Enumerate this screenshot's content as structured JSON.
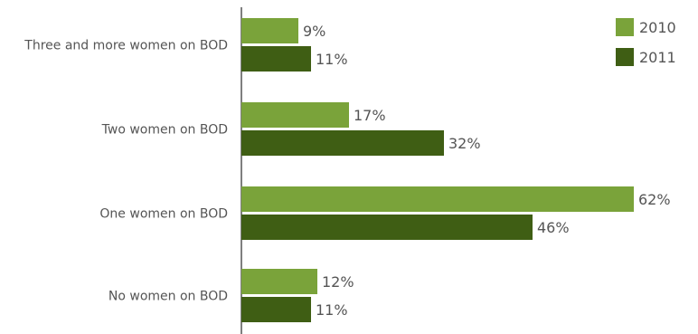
{
  "chart_data": {
    "type": "bar",
    "orientation": "horizontal",
    "categories": [
      "Three and more women on BOD",
      "Two women on BOD",
      "One women on BOD",
      "No women on BOD"
    ],
    "series": [
      {
        "name": "2010",
        "values": [
          9,
          17,
          62,
          12
        ],
        "labels": [
          "9%",
          "17%",
          "62%",
          "12%"
        ],
        "color": "#7aa33a"
      },
      {
        "name": "2011",
        "values": [
          11,
          32,
          46,
          11
        ],
        "labels": [
          "11%",
          "32%",
          "46%",
          "11%"
        ],
        "color": "#3f5e14"
      }
    ],
    "value_unit": "%",
    "xlim": [
      0,
      62
    ],
    "grid": false,
    "legend": "top-right"
  }
}
